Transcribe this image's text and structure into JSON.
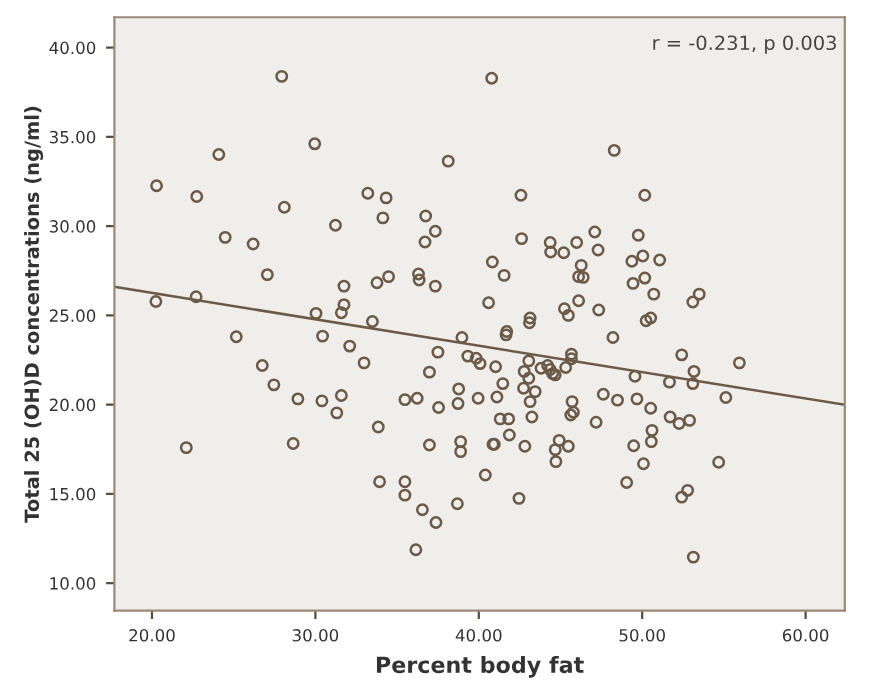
{
  "chart_data": {
    "type": "scatter",
    "xlabel": "Percent body fat",
    "ylabel": "Total 25 (OH)D concentrations (ng/ml)",
    "annotations": [
      "r = -0.231, p 0.003"
    ],
    "xlim": [
      17.7,
      62.4
    ],
    "ylim": [
      8.46,
      41.7
    ],
    "xticks": [
      {
        "value": 20,
        "label": "20.00"
      },
      {
        "value": 30,
        "label": "30.00"
      },
      {
        "value": 40,
        "label": "40.00"
      },
      {
        "value": 50,
        "label": "50.00"
      },
      {
        "value": 60,
        "label": "60.00"
      }
    ],
    "yticks": [
      {
        "value": 10,
        "label": "10.00"
      },
      {
        "value": 15,
        "label": "15.00"
      },
      {
        "value": 20,
        "label": "20.00"
      },
      {
        "value": 25,
        "label": "25.00"
      },
      {
        "value": 30,
        "label": "30.00"
      },
      {
        "value": 35,
        "label": "35.00"
      },
      {
        "value": 40,
        "label": "40.00"
      }
    ],
    "grid": false,
    "legend": false,
    "series": [
      {
        "marker": "circle",
        "color": "#6b5a48",
        "x": [
          27.94,
          40.79,
          24.09,
          29.96,
          38.13,
          48.29,
          20.28,
          22.74,
          28.1,
          33.21,
          34.33,
          34.13,
          31.23,
          42.58,
          50.16,
          36.75,
          37.34,
          36.71,
          24.48,
          26.19,
          42.62,
          44.37,
          44.4,
          45.2,
          45.99,
          47.1,
          47.3,
          49.76,
          50.04,
          49.37,
          51.07,
          40.83,
          41.55,
          46.27,
          46.11,
          46.39,
          50.16,
          49.44,
          50.71,
          27.06,
          33.77,
          34.48,
          36.31,
          36.35,
          37.34,
          31.75,
          31.75,
          31.59,
          30.04,
          30.44,
          20.24,
          22.7,
          25.16,
          33.49,
          32.1,
          32.98,
          26.75,
          27.46,
          28.93,
          30.4,
          31.59,
          31.31,
          22.1,
          28.64,
          33.85,
          33.93,
          35.48,
          35.48,
          36.55,
          37.38,
          36.15,
          38.69,
          35.48,
          36.23,
          36.98,
          37.5,
          37.54,
          36.98,
          38.73,
          38.77,
          38.89,
          38.89,
          38.97,
          39.33,
          39.84,
          40.08,
          39.96,
          40.6,
          40.4,
          40.87,
          40.95,
          41.03,
          41.11,
          41.31,
          41.83,
          41.87,
          41.47,
          41.67,
          41.71,
          42.46,
          42.78,
          42.74,
          42.82,
          43.06,
          43.06,
          43.1,
          43.14,
          43.14,
          43.25,
          43.45,
          43.81,
          44.21,
          44.37,
          44.52,
          44.68,
          44.68,
          44.72,
          44.92,
          45.24,
          45.48,
          45.32,
          45.67,
          45.67,
          45.71,
          45.63,
          45.79,
          45.48,
          46.11,
          47.34,
          47.18,
          47.62,
          48.21,
          48.49,
          49.05,
          49.48,
          49.56,
          49.68,
          50.08,
          50.24,
          50.52,
          50.52,
          50.6,
          50.56,
          51.67,
          51.71,
          52.26,
          52.42,
          52.42,
          52.78,
          52.9,
          53.1,
          53.17,
          53.1,
          53.49,
          53.13,
          54.68,
          55.12,
          55.95
        ],
        "values": [
          38.39,
          38.28,
          34.01,
          34.61,
          33.64,
          34.24,
          32.26,
          31.66,
          31.06,
          31.84,
          31.58,
          30.46,
          30.05,
          31.73,
          31.73,
          30.57,
          29.71,
          29.11,
          29.37,
          29.0,
          29.3,
          29.08,
          28.55,
          28.51,
          29.08,
          29.67,
          28.66,
          29.49,
          28.33,
          28.03,
          28.1,
          27.99,
          27.24,
          27.8,
          27.17,
          27.13,
          27.09,
          26.79,
          26.19,
          27.28,
          26.83,
          27.17,
          27.32,
          26.98,
          26.64,
          26.64,
          25.6,
          25.15,
          25.11,
          23.84,
          25.78,
          26.04,
          23.8,
          24.66,
          23.28,
          22.34,
          22.19,
          21.11,
          20.32,
          20.21,
          20.51,
          19.54,
          17.59,
          17.82,
          18.75,
          15.68,
          15.68,
          14.93,
          14.11,
          13.4,
          11.87,
          14.45,
          20.28,
          20.36,
          21.82,
          22.94,
          19.84,
          17.74,
          20.06,
          20.88,
          17.93,
          17.37,
          23.76,
          22.72,
          22.6,
          22.3,
          20.36,
          25.71,
          16.06,
          17.78,
          17.78,
          22.12,
          20.43,
          19.2,
          19.2,
          18.3,
          21.18,
          23.91,
          24.1,
          14.75,
          21.86,
          20.92,
          17.67,
          22.45,
          21.48,
          24.59,
          24.85,
          20.17,
          19.31,
          20.73,
          22.04,
          22.19,
          21.97,
          21.74,
          21.67,
          17.48,
          16.81,
          18.0,
          25.37,
          25.0,
          22.08,
          22.83,
          22.57,
          20.17,
          19.42,
          19.57,
          17.67,
          25.82,
          25.3,
          19.01,
          20.58,
          23.76,
          20.25,
          15.64,
          17.7,
          21.59,
          20.32,
          16.69,
          24.7,
          24.85,
          19.8,
          18.56,
          17.93,
          21.26,
          19.31,
          18.94,
          22.79,
          14.82,
          15.2,
          19.12,
          21.18,
          21.86,
          25.75,
          26.19,
          11.46,
          16.77,
          20.4,
          22.34
        ]
      },
      {
        "type": "line",
        "marker": "none",
        "line_style": "solid",
        "color": "#6b5a48",
        "x": [
          17.7,
          62.4
        ],
        "values": [
          26.6,
          19.99
        ]
      }
    ]
  }
}
